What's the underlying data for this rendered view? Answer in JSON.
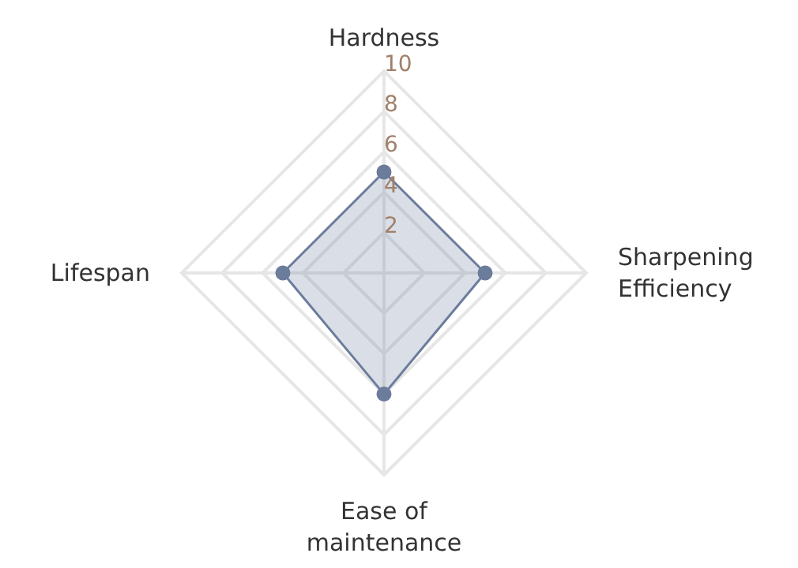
{
  "chart_data": {
    "type": "radar",
    "categories": [
      "Hardness",
      "Sharpening Efficiency",
      "Ease of maintenance",
      "Lifespan"
    ],
    "series": [
      {
        "color": "#6c7c9c",
        "values": [
          5,
          5,
          6,
          5
        ]
      }
    ],
    "ylim": [
      0,
      10
    ],
    "yticks": [
      2,
      4,
      6,
      8,
      10
    ],
    "grid": true,
    "marker": "circle"
  }
}
